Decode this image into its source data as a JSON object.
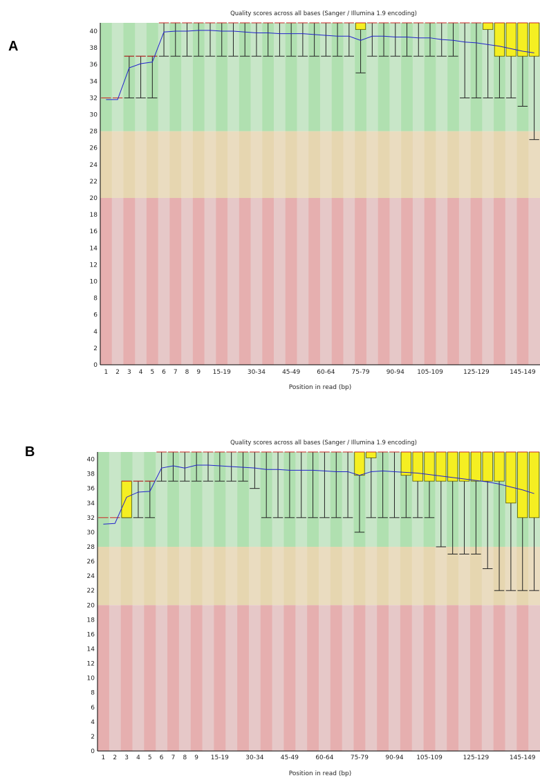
{
  "panels": [
    {
      "letter": "A"
    },
    {
      "letter": "B"
    }
  ],
  "colors": {
    "green_dark": "#b0e0b0",
    "green_light": "#c8e6c8",
    "orange_dark": "#e6d6b0",
    "orange_light": "#eadcc0",
    "red_dark": "#e6afaf",
    "red_light": "#e6c8c8",
    "box": "#f5ef22",
    "box_stroke": "#555500",
    "mean": "#2222cc",
    "median": "#cc2222",
    "whisker": "#222222"
  },
  "chart_data": [
    {
      "type": "box",
      "title": "Quality scores across all bases (Sanger / Illumina 1.9 encoding)",
      "xlabel": "Position in read (bp)",
      "ylabel": "",
      "ylim": [
        0,
        41
      ],
      "yticks": [
        0,
        2,
        4,
        6,
        8,
        10,
        12,
        14,
        16,
        18,
        20,
        22,
        24,
        26,
        28,
        30,
        32,
        34,
        36,
        38,
        40
      ],
      "bands": {
        "good_min": 28,
        "reasonable_min": 20
      },
      "categories": [
        "1",
        "2",
        "3",
        "4",
        "5",
        "6",
        "7",
        "8",
        "9",
        "10-14",
        "15-19",
        "20-24",
        "25-29",
        "30-34",
        "35-39",
        "40-44",
        "45-49",
        "50-54",
        "55-59",
        "60-64",
        "65-69",
        "70-74",
        "75-79",
        "80-84",
        "85-89",
        "90-94",
        "95-99",
        "100-104",
        "105-109",
        "110-114",
        "115-119",
        "120-124",
        "125-129",
        "130-134",
        "135-139",
        "140-144",
        "145-149",
        "150-151"
      ],
      "xtick_labels": [
        "1",
        "2",
        "3",
        "4",
        "5",
        "6",
        "7",
        "8",
        "9",
        "15-19",
        "30-34",
        "45-49",
        "60-64",
        "75-79",
        "90-94",
        "105-109",
        "125-129",
        "145-149"
      ],
      "mean": [
        31.8,
        31.8,
        35.6,
        36.1,
        36.3,
        39.9,
        40.0,
        40.0,
        40.1,
        40.1,
        40.0,
        40.0,
        39.9,
        39.8,
        39.8,
        39.7,
        39.7,
        39.7,
        39.6,
        39.5,
        39.4,
        39.4,
        38.9,
        39.4,
        39.4,
        39.3,
        39.3,
        39.2,
        39.2,
        39.0,
        38.9,
        38.7,
        38.6,
        38.4,
        38.2,
        37.9,
        37.6,
        37.4
      ],
      "median": [
        32,
        32,
        37,
        37,
        37,
        41,
        41,
        41,
        41,
        41,
        41,
        41,
        41,
        41,
        41,
        41,
        41,
        41,
        41,
        41,
        41,
        41,
        41,
        41,
        41,
        41,
        41,
        41,
        41,
        41,
        41,
        41,
        41,
        41,
        41,
        41,
        41,
        41
      ],
      "q1": [
        32,
        32,
        37,
        37,
        37,
        41,
        41,
        41,
        41,
        41,
        41,
        41,
        41,
        41,
        41,
        41,
        41,
        41,
        41,
        41,
        41,
        41,
        40.2,
        41,
        41,
        41,
        41,
        41,
        41,
        41,
        41,
        41,
        41,
        40.2,
        37,
        37,
        37,
        37
      ],
      "q3": [
        32,
        32,
        37,
        37,
        37,
        41,
        41,
        41,
        41,
        41,
        41,
        41,
        41,
        41,
        41,
        41,
        41,
        41,
        41,
        41,
        41,
        41,
        41,
        41,
        41,
        41,
        41,
        41,
        41,
        41,
        41,
        41,
        41,
        41,
        41,
        41,
        41,
        41
      ],
      "low": [
        32,
        32,
        32,
        32,
        32,
        37,
        37,
        37,
        37,
        37,
        37,
        37,
        37,
        37,
        37,
        37,
        37,
        37,
        37,
        37,
        37,
        37,
        35,
        37,
        37,
        37,
        37,
        37,
        37,
        37,
        37,
        32,
        32,
        32,
        32,
        32,
        31,
        27
      ],
      "high": [
        32,
        32,
        37,
        37,
        37,
        41,
        41,
        41,
        41,
        41,
        41,
        41,
        41,
        41,
        41,
        41,
        41,
        41,
        41,
        41,
        41,
        41,
        41,
        41,
        41,
        41,
        41,
        41,
        41,
        41,
        41,
        41,
        41,
        41,
        41,
        41,
        41,
        41
      ]
    },
    {
      "type": "box",
      "title": "Quality scores across all bases (Sanger / Illumina 1.9 encoding)",
      "xlabel": "Position in read (bp)",
      "ylabel": "",
      "ylim": [
        0,
        41
      ],
      "yticks": [
        0,
        2,
        4,
        6,
        8,
        10,
        12,
        14,
        16,
        18,
        20,
        22,
        24,
        26,
        28,
        30,
        32,
        34,
        36,
        38,
        40
      ],
      "bands": {
        "good_min": 28,
        "reasonable_min": 20
      },
      "categories": [
        "1",
        "2",
        "3",
        "4",
        "5",
        "6",
        "7",
        "8",
        "9",
        "10-14",
        "15-19",
        "20-24",
        "25-29",
        "30-34",
        "35-39",
        "40-44",
        "45-49",
        "50-54",
        "55-59",
        "60-64",
        "65-69",
        "70-74",
        "75-79",
        "80-84",
        "85-89",
        "90-94",
        "95-99",
        "100-104",
        "105-109",
        "110-114",
        "115-119",
        "120-124",
        "125-129",
        "130-134",
        "135-139",
        "140-144",
        "145-149",
        "150-151"
      ],
      "xtick_labels": [
        "1",
        "2",
        "3",
        "4",
        "5",
        "6",
        "7",
        "8",
        "9",
        "15-19",
        "30-34",
        "45-49",
        "60-64",
        "75-79",
        "90-94",
        "105-109",
        "125-129",
        "145-149"
      ],
      "mean": [
        31.1,
        31.2,
        34.8,
        35.5,
        35.6,
        38.8,
        39.1,
        38.8,
        39.2,
        39.2,
        39.1,
        39.0,
        38.9,
        38.8,
        38.6,
        38.6,
        38.5,
        38.5,
        38.5,
        38.4,
        38.3,
        38.3,
        37.8,
        38.3,
        38.4,
        38.3,
        38.2,
        38.1,
        37.9,
        37.7,
        37.5,
        37.3,
        37.1,
        36.9,
        36.6,
        36.2,
        35.8,
        35.3
      ],
      "median": [
        32,
        32,
        37,
        37,
        37,
        41,
        41,
        41,
        41,
        41,
        41,
        41,
        41,
        41,
        41,
        41,
        41,
        41,
        41,
        41,
        41,
        41,
        41,
        41,
        41,
        41,
        41,
        41,
        41,
        41,
        41,
        41,
        41,
        41,
        41,
        41,
        41,
        41
      ],
      "q1": [
        32,
        32,
        32,
        37,
        37,
        41,
        41,
        41,
        41,
        41,
        41,
        41,
        41,
        41,
        41,
        41,
        41,
        41,
        41,
        41,
        41,
        41,
        37.8,
        40.2,
        41,
        41,
        37.8,
        37,
        37,
        37,
        37,
        37,
        37,
        37,
        37,
        34,
        32,
        32
      ],
      "q3": [
        32,
        32,
        37,
        37,
        37,
        41,
        41,
        41,
        41,
        41,
        41,
        41,
        41,
        41,
        41,
        41,
        41,
        41,
        41,
        41,
        41,
        41,
        41,
        41,
        41,
        41,
        41,
        41,
        41,
        41,
        41,
        41,
        41,
        41,
        41,
        41,
        41,
        41
      ],
      "low": [
        32,
        32,
        32,
        32,
        32,
        37,
        37,
        37,
        37,
        37,
        37,
        37,
        37,
        36,
        32,
        32,
        32,
        32,
        32,
        32,
        32,
        32,
        30,
        32,
        32,
        32,
        32,
        32,
        32,
        28,
        27,
        27,
        27,
        25,
        22,
        22,
        22,
        22
      ],
      "high": [
        32,
        32,
        37,
        37,
        37,
        41,
        41,
        41,
        41,
        41,
        41,
        41,
        41,
        41,
        41,
        41,
        41,
        41,
        41,
        41,
        41,
        41,
        41,
        41,
        41,
        41,
        41,
        41,
        41,
        41,
        41,
        41,
        41,
        41,
        41,
        41,
        41,
        41
      ]
    }
  ]
}
